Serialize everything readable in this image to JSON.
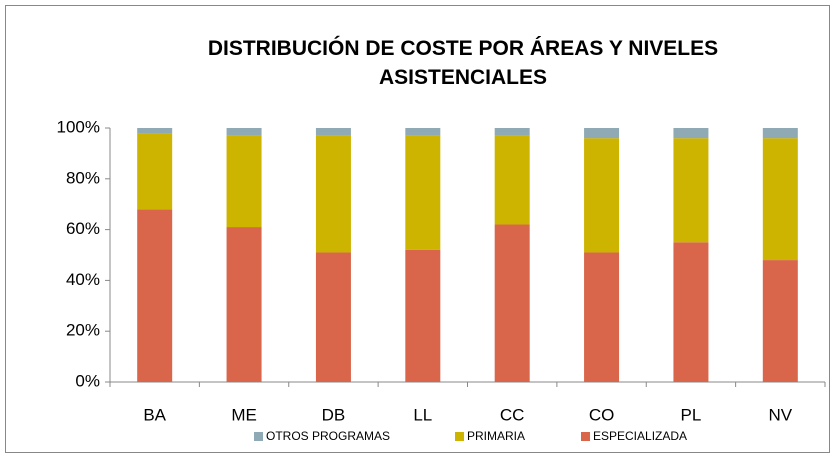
{
  "chart_data": {
    "type": "stacked_bar",
    "title": "DISTRIBUCIÓN DE COSTE POR ÁREAS Y NIVELES ASISTENCIALES",
    "categories": [
      "BA",
      "ME",
      "DB",
      "LL",
      "CC",
      "CO",
      "PL",
      "NV"
    ],
    "series": [
      {
        "name": "ESPECIALIZADA",
        "color": "#d9654b",
        "values": [
          68,
          61,
          51,
          52,
          62,
          51,
          55,
          48
        ]
      },
      {
        "name": "PRIMARIA",
        "color": "#cdb400",
        "values": [
          30,
          36,
          46,
          45,
          35,
          45,
          41,
          48
        ]
      },
      {
        "name": "OTROS PROGRAMAS",
        "color": "#8faab5",
        "values": [
          2,
          3,
          3,
          3,
          3,
          4,
          4,
          4
        ]
      }
    ],
    "ylim": [
      0,
      100
    ],
    "yticks": [
      {
        "value": 0,
        "label": "0%"
      },
      {
        "value": 20,
        "label": "20%"
      },
      {
        "value": 40,
        "label": "40%"
      },
      {
        "value": 60,
        "label": "60%"
      },
      {
        "value": 80,
        "label": "80%"
      },
      {
        "value": 100,
        "label": "100%"
      }
    ],
    "grid": false
  }
}
